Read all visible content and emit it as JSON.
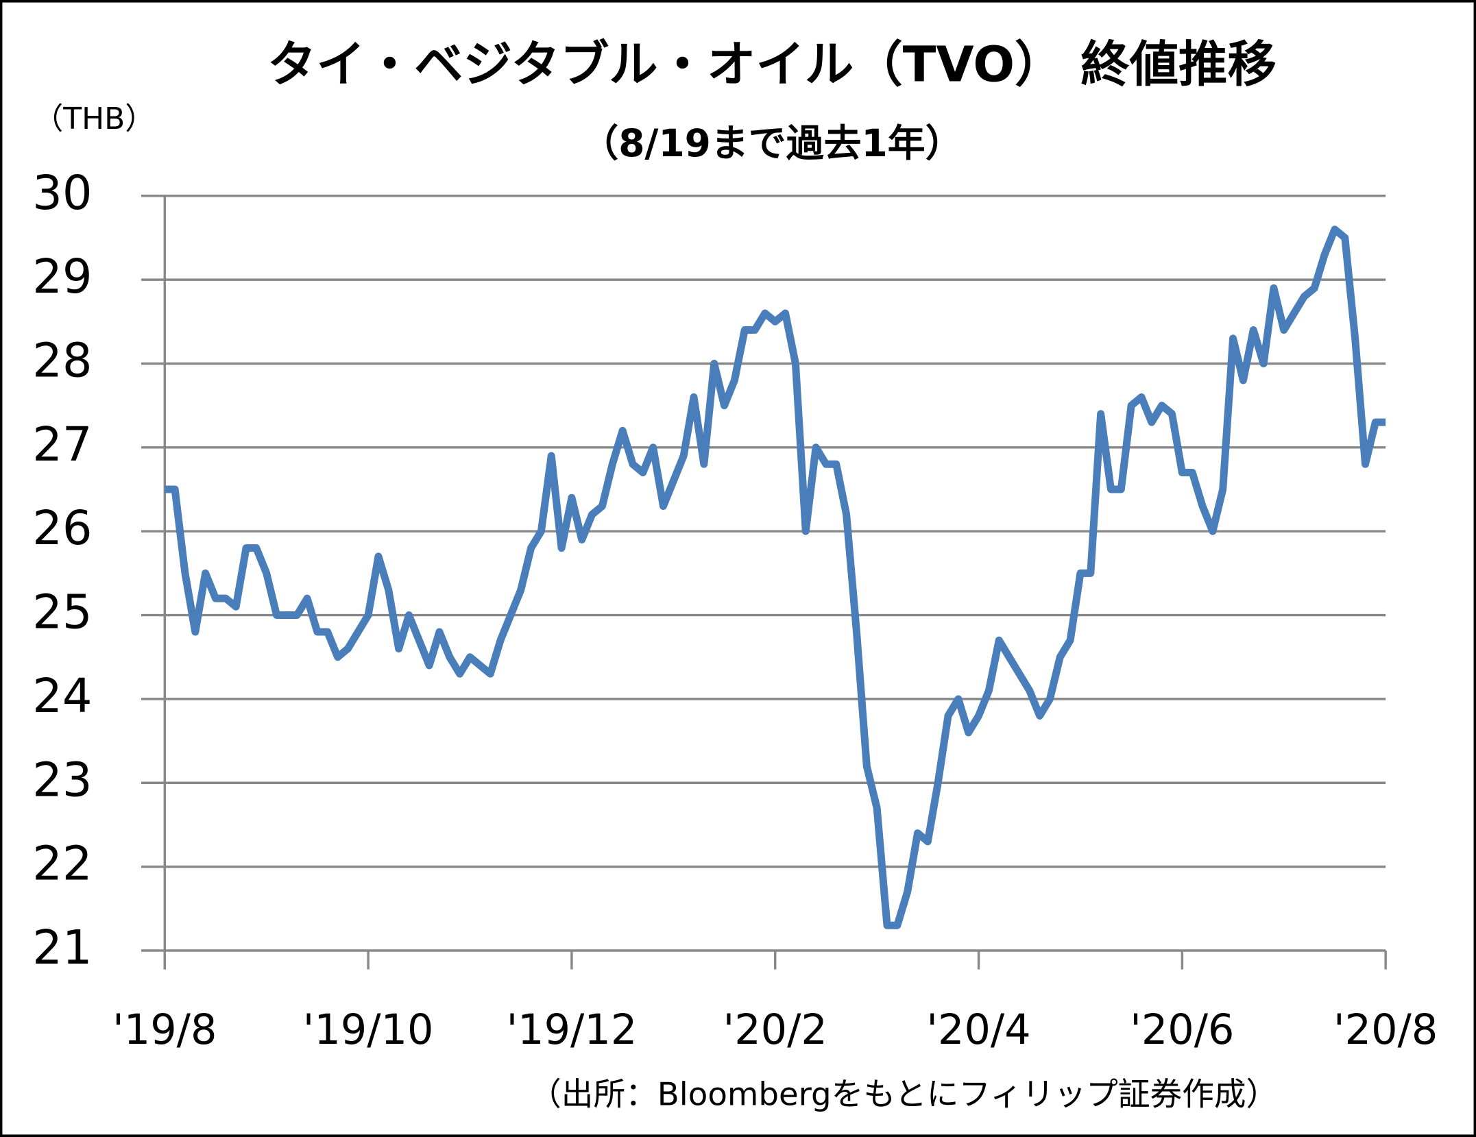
{
  "chart_data": {
    "type": "line",
    "title": "タイ・ベジタブル・オイル（TVO） 終値推移",
    "subtitle": "（8/19まで過去1年）",
    "y_label": "（THB）",
    "source": "（出所：Bloombergをもとにフィリップ証券作成）",
    "xlim": [
      0,
      120
    ],
    "xticks": [
      {
        "value": 0,
        "label": "'19/8"
      },
      {
        "value": 20,
        "label": "'19/10"
      },
      {
        "value": 40,
        "label": "'19/12"
      },
      {
        "value": 60,
        "label": "'20/2"
      },
      {
        "value": 80,
        "label": "'20/4"
      },
      {
        "value": 100,
        "label": "'20/6"
      },
      {
        "value": 120,
        "label": "'20/8"
      }
    ],
    "ylim": [
      21,
      30
    ],
    "yticks": [
      21,
      22,
      23,
      24,
      25,
      26,
      27,
      28,
      29,
      30
    ],
    "grid": true,
    "series": [
      {
        "color": "#4a7ebb",
        "values": [
          26.5,
          26.5,
          25.5,
          24.8,
          25.5,
          25.2,
          25.2,
          25.1,
          25.8,
          25.8,
          25.5,
          25.0,
          25.0,
          25.0,
          25.2,
          24.8,
          24.8,
          24.5,
          24.6,
          24.8,
          25.0,
          25.7,
          25.3,
          24.6,
          25.0,
          24.7,
          24.4,
          24.8,
          24.5,
          24.3,
          24.5,
          24.4,
          24.3,
          24.7,
          25.0,
          25.3,
          25.8,
          26.0,
          26.9,
          25.8,
          26.4,
          25.9,
          26.2,
          26.3,
          26.8,
          27.2,
          26.8,
          26.7,
          27.0,
          26.3,
          26.6,
          26.9,
          27.6,
          26.8,
          28.0,
          27.5,
          27.8,
          28.4,
          28.4,
          28.6,
          28.5,
          28.6,
          28.0,
          26.0,
          27.0,
          26.8,
          26.8,
          26.2,
          24.8,
          23.2,
          22.7,
          21.3,
          21.3,
          21.7,
          22.4,
          22.3,
          23.0,
          23.8,
          24.0,
          23.6,
          23.8,
          24.1,
          24.7,
          24.5,
          24.3,
          24.1,
          23.8,
          24.0,
          24.5,
          24.7,
          25.5,
          25.5,
          27.4,
          26.5,
          26.5,
          27.5,
          27.6,
          27.3,
          27.5,
          27.4,
          26.7,
          26.7,
          26.3,
          26.0,
          26.5,
          28.3,
          27.8,
          28.4,
          28.0,
          28.9,
          28.4,
          28.6,
          28.8,
          28.9,
          29.3,
          29.6,
          29.5,
          28.3,
          26.8,
          27.3,
          27.3
        ]
      }
    ]
  }
}
